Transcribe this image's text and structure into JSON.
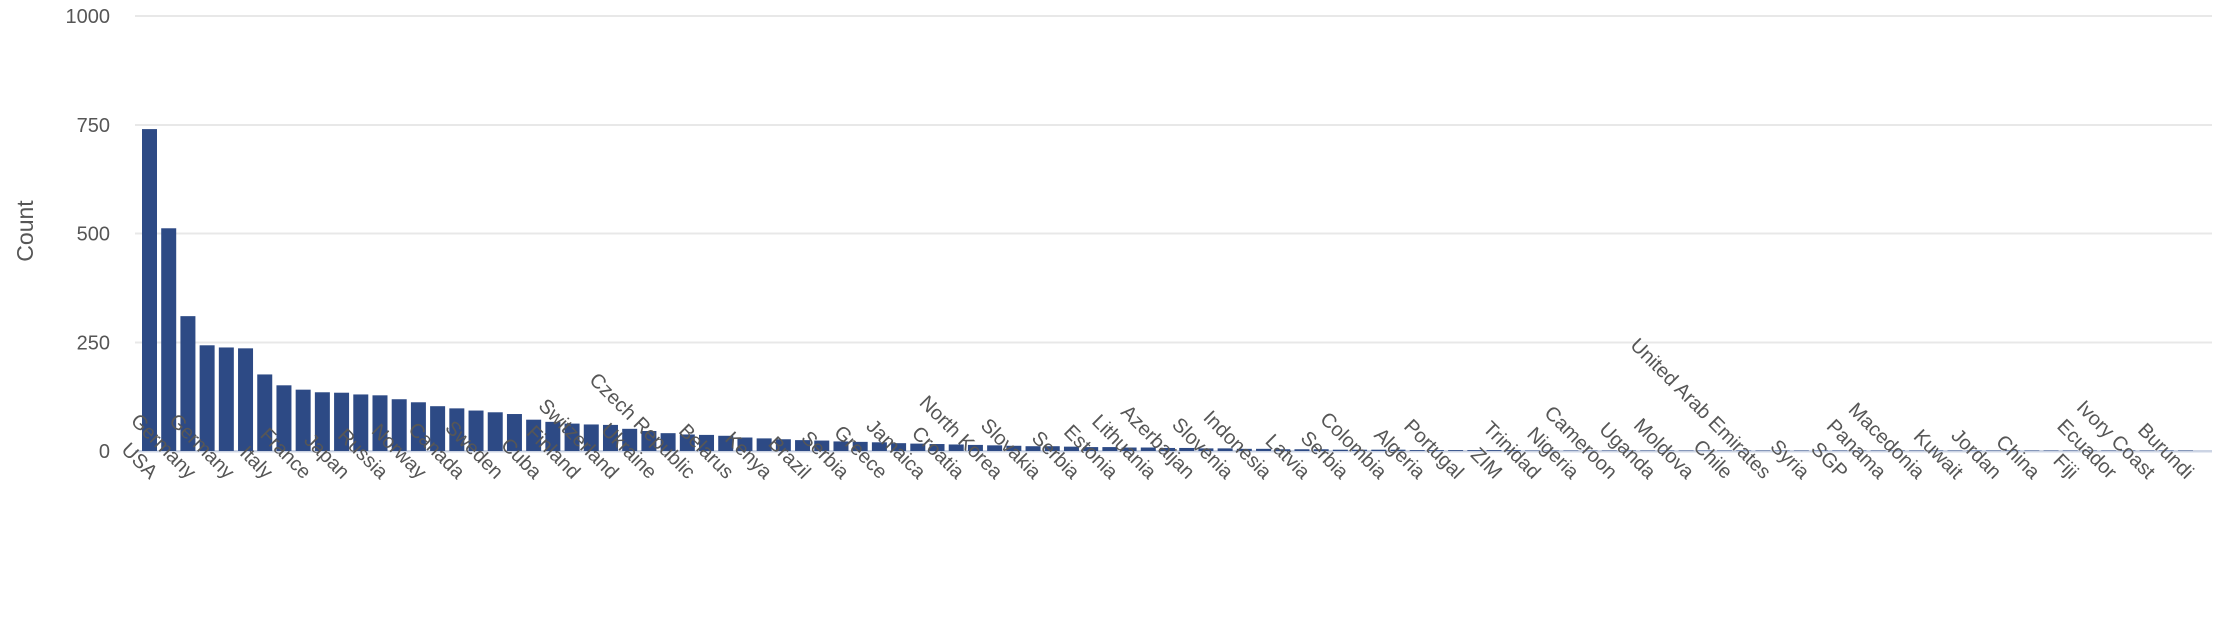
{
  "chart_data": {
    "type": "bar",
    "title": "",
    "xlabel": "",
    "ylabel": "Count",
    "ylim": [
      0,
      1000
    ],
    "yticks": [
      0,
      250,
      500,
      750,
      1000
    ],
    "grid": "horizontal",
    "legend": "none",
    "bar_color": "#2d4a85",
    "gridline_color": "#e8e8e8",
    "zeroline_color": "#ccd4e4",
    "axis_text_color": "#565656",
    "x_label_every_nth_bar": 2,
    "n_bars": 107,
    "values": [
      740,
      512,
      310,
      243,
      238,
      236,
      176,
      151,
      141,
      135,
      134,
      130,
      128,
      119,
      112,
      103,
      98,
      93,
      89,
      85,
      72,
      67,
      63,
      61,
      60,
      51,
      46,
      41,
      38,
      37,
      35,
      31,
      29,
      27,
      25,
      24,
      22,
      21,
      20,
      18,
      17,
      16,
      15,
      14,
      13,
      12,
      11,
      11,
      10,
      9,
      9,
      8,
      8,
      7,
      7,
      6,
      6,
      5,
      5,
      4,
      4,
      4,
      3,
      3,
      3,
      3,
      2,
      2,
      2,
      2,
      2,
      2,
      1,
      1,
      1,
      1,
      1,
      1,
      1,
      1,
      1,
      1,
      1,
      1,
      1,
      1,
      1,
      1,
      1,
      1,
      1,
      1,
      1,
      1,
      1,
      1,
      1,
      1,
      1,
      1,
      1,
      1,
      1,
      1,
      1,
      1,
      1
    ],
    "x_tick_labels": [
      "USA",
      "Germany",
      "Germany",
      "Italy",
      "France",
      "Japan",
      "Russia",
      "Norway",
      "Canada",
      "Sweden",
      "Cuba",
      "Finland",
      "Switzerland",
      "Ukraine",
      "Czech Republic",
      "Belarus",
      "Kenya",
      "Brazil",
      "Serbia",
      "Greece",
      "Jamaica",
      "Croatia",
      "North Korea",
      "Slovakia",
      "Serbia",
      "Estonia",
      "Lithuania",
      "Azerbaijan",
      "Slovenia",
      "Indonesia",
      "Latvia",
      "Serbia",
      "Colombia",
      "Algeria",
      "Portugal",
      "ZIM",
      "Trinidad",
      "Nigeria",
      "Cameroon",
      "Uganda",
      "Moldova",
      "Chile",
      "United Arab Emirates",
      "Syria",
      "SGP",
      "Panama",
      "Macedonia",
      "Kuwait",
      "Jordan",
      "China",
      "Fiji",
      "Ecuador",
      "Ivory Coast",
      "Burundi"
    ]
  }
}
